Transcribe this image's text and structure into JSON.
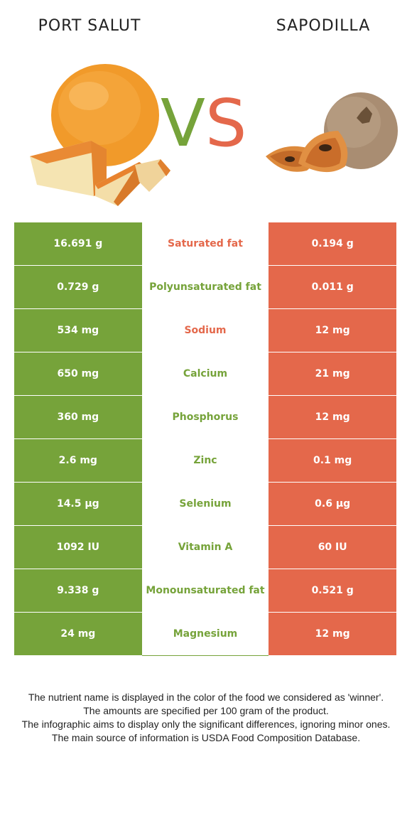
{
  "header": {
    "left_food": "PORT SALUT",
    "right_food": "SAPODILLA",
    "vs_v": "V",
    "vs_s": "S"
  },
  "colors": {
    "left_accent": "#76a33a",
    "right_accent": "#e4684b"
  },
  "rows": [
    {
      "left": "16.691 g",
      "nutrient": "Saturated fat",
      "right": "0.194 g",
      "winner": "right"
    },
    {
      "left": "0.729 g",
      "nutrient": "Polyunsaturated fat",
      "right": "0.011 g",
      "winner": "left"
    },
    {
      "left": "534 mg",
      "nutrient": "Sodium",
      "right": "12 mg",
      "winner": "right"
    },
    {
      "left": "650 mg",
      "nutrient": "Calcium",
      "right": "21 mg",
      "winner": "left"
    },
    {
      "left": "360 mg",
      "nutrient": "Phosphorus",
      "right": "12 mg",
      "winner": "left"
    },
    {
      "left": "2.6 mg",
      "nutrient": "Zinc",
      "right": "0.1 mg",
      "winner": "left"
    },
    {
      "left": "14.5 µg",
      "nutrient": "Selenium",
      "right": "0.6 µg",
      "winner": "left"
    },
    {
      "left": "1092 IU",
      "nutrient": "Vitamin A",
      "right": "60 IU",
      "winner": "left"
    },
    {
      "left": "9.338 g",
      "nutrient": "Monounsaturated fat",
      "right": "0.521 g",
      "winner": "left"
    },
    {
      "left": "24 mg",
      "nutrient": "Magnesium",
      "right": "12 mg",
      "winner": "left"
    }
  ],
  "footnote": {
    "line1": "The nutrient name is displayed in the color of the food we considered as 'winner'.",
    "line2": "The amounts are specified per 100 gram of the product.",
    "line3": "The infographic aims to display only the significant differences, ignoring minor ones.",
    "line4": "The main source of information is USDA Food Composition Database."
  }
}
